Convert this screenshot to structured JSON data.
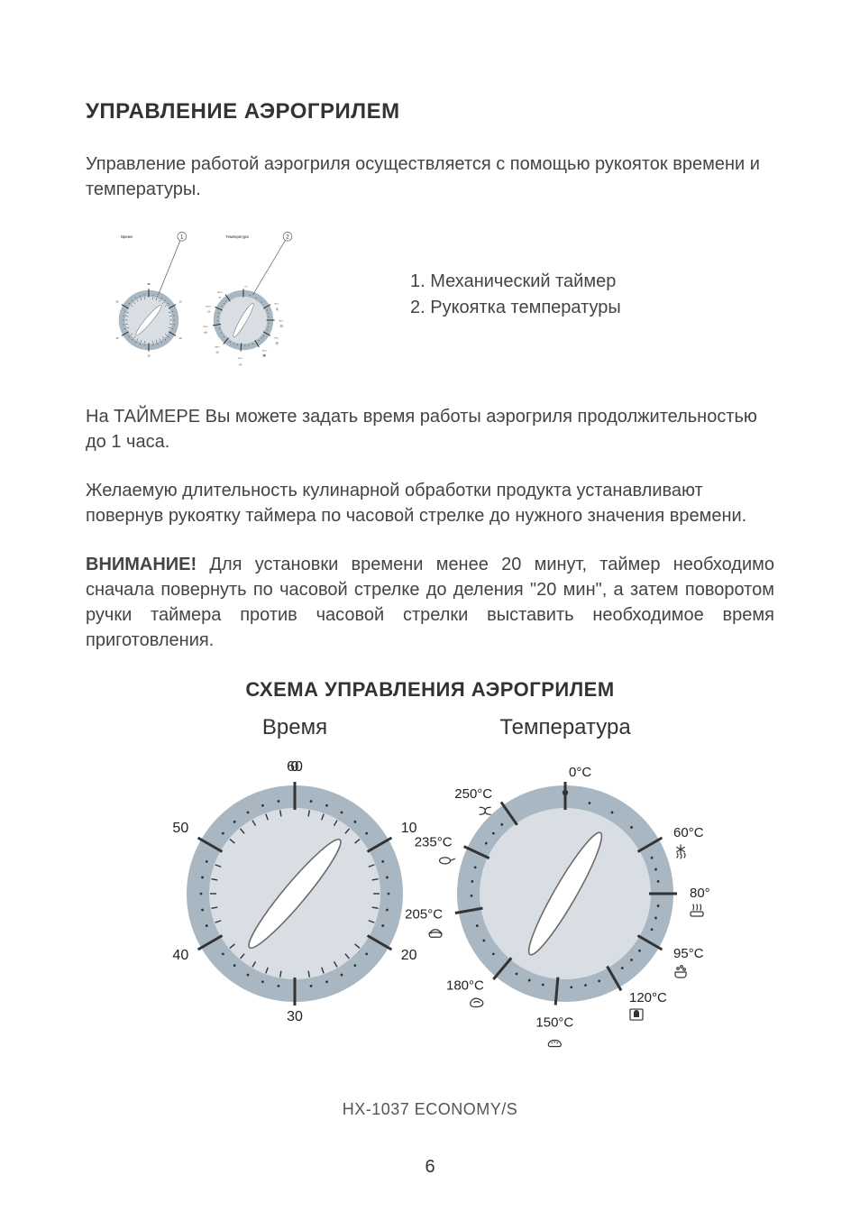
{
  "colors": {
    "bg": "#ffffff",
    "text": "#333333",
    "dial_ring": "#a9b7c2",
    "dial_face": "#d8dee3",
    "knob_fill": "#ffffff",
    "knob_stroke": "#6b6b6b",
    "tick": "#333333",
    "dot": "#333333",
    "callout_stroke": "#555555"
  },
  "section": {
    "title": "УПРАВЛЕНИЕ АЭРОГРИЛЕМ",
    "intro": "Управление работой аэрогриля осуществляется с помощью рукояток времени и температуры.",
    "legend_1": "1. Механический таймер",
    "legend_2": "2. Рукоятка температуры",
    "para_timer": "На ТАЙМЕРЕ Вы можете задать время работы аэрогриля продолжительностью до 1 часа.",
    "para_duration": "Желаемую длительность кулинарной обработки продукта устанавливают повернув рукоятку таймера по часовой стрелке до нужного значения времени.",
    "warning_label": "ВНИМАНИЕ!",
    "warning_text": " Для установки времени менее 20 минут, таймер необходимо сначала повернуть по часовой стрелке до деления \"20 мин\", а затем поворотом ручки таймера против часовой стрелки выставить необходимое время приготовления."
  },
  "scheme": {
    "title": "СХЕМА УПРАВЛЕНИЯ АЭРОГРИЛЕМ",
    "model": "HX-1037 ECONOMY/S",
    "time_heading": "Время",
    "temp_heading": "Температура"
  },
  "time_dial": {
    "ring_outer_r": 120,
    "ring_inner_r": 108,
    "face_r": 95,
    "knob_rx": 12,
    "knob_ry": 78,
    "knob_angle_deg": 40,
    "major_ticks": [
      {
        "angle": -90,
        "label": "0"
      },
      {
        "angle": -30,
        "label": "10"
      },
      {
        "angle": 30,
        "label": "20"
      },
      {
        "angle": 90,
        "label": "30"
      },
      {
        "angle": 150,
        "label": "40"
      },
      {
        "angle": 210,
        "label": "50"
      },
      {
        "angle": 270,
        "label": "60"
      }
    ],
    "minor_per_segment": 5
  },
  "temp_dial": {
    "ring_outer_r": 120,
    "ring_inner_r": 108,
    "face_r": 95,
    "knob_rx": 12,
    "knob_ry": 78,
    "knob_angle_deg": 30,
    "ticks": [
      {
        "angle": -90,
        "label": "0°C",
        "side": "right",
        "marker": "dot"
      },
      {
        "angle": -30,
        "label": "60°C",
        "side": "right",
        "icon": "defrost"
      },
      {
        "angle": 0,
        "label": "80°C",
        "side": "right",
        "icon": "dry"
      },
      {
        "angle": 30,
        "label": "95°C",
        "side": "right",
        "icon": "simmer"
      },
      {
        "angle": 60,
        "label": "120°C",
        "side": "right",
        "icon": "toast"
      },
      {
        "angle": 95,
        "label": "150°C",
        "side": "bottom",
        "icon": "bake"
      },
      {
        "angle": 130,
        "label": "180°C",
        "side": "left",
        "icon": "steak"
      },
      {
        "angle": 170,
        "label": "205°C",
        "side": "left",
        "icon": "pie"
      },
      {
        "angle": 205,
        "label": "235°C",
        "side": "left",
        "icon": "fry"
      },
      {
        "angle": 235,
        "label": "250°C",
        "side": "left",
        "icon": "grill"
      }
    ],
    "minor_per_segment": 3
  },
  "mini": {
    "callout_1": "1",
    "callout_2": "2",
    "time_label": "Время",
    "temp_label": "Температура"
  },
  "page_number": "6"
}
